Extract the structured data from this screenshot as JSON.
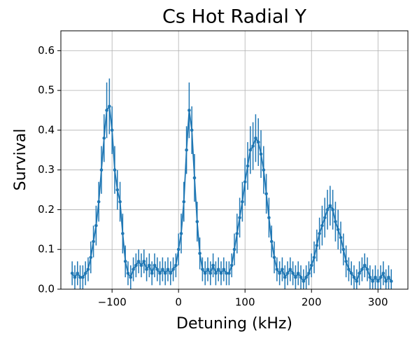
{
  "chart_data": {
    "type": "line",
    "title": "Cs Hot Radial Y",
    "xlabel": "Detuning (kHz)",
    "ylabel": "Survival",
    "x": [
      -160,
      -156,
      -152,
      -148,
      -144,
      -140,
      -136,
      -132,
      -128,
      -124,
      -120,
      -116,
      -112,
      -108,
      -104,
      -100,
      -96,
      -92,
      -88,
      -84,
      -80,
      -76,
      -72,
      -68,
      -64,
      -60,
      -56,
      -52,
      -48,
      -44,
      -40,
      -36,
      -32,
      -28,
      -24,
      -20,
      -16,
      -12,
      -8,
      -4,
      0,
      4,
      8,
      12,
      16,
      20,
      24,
      28,
      32,
      36,
      40,
      44,
      48,
      52,
      56,
      60,
      64,
      68,
      72,
      76,
      80,
      84,
      88,
      92,
      96,
      100,
      104,
      108,
      112,
      116,
      120,
      124,
      128,
      132,
      136,
      140,
      144,
      148,
      152,
      156,
      160,
      164,
      168,
      172,
      176,
      180,
      184,
      188,
      192,
      196,
      200,
      204,
      208,
      212,
      216,
      220,
      224,
      228,
      232,
      236,
      240,
      244,
      248,
      252,
      256,
      260,
      264,
      268,
      272,
      276,
      280,
      284,
      288,
      292,
      296,
      300,
      304,
      308,
      312,
      316,
      320
    ],
    "series": [
      {
        "color": "#1f77b4",
        "values": [
          0.04,
          0.03,
          0.04,
          0.03,
          0.03,
          0.04,
          0.05,
          0.08,
          0.12,
          0.16,
          0.22,
          0.3,
          0.38,
          0.45,
          0.46,
          0.4,
          0.3,
          0.25,
          0.22,
          0.14,
          0.07,
          0.04,
          0.03,
          0.05,
          0.06,
          0.07,
          0.06,
          0.07,
          0.05,
          0.06,
          0.04,
          0.06,
          0.05,
          0.04,
          0.05,
          0.04,
          0.05,
          0.04,
          0.05,
          0.06,
          0.1,
          0.14,
          0.22,
          0.35,
          0.45,
          0.4,
          0.28,
          0.17,
          0.09,
          0.05,
          0.04,
          0.05,
          0.04,
          0.06,
          0.04,
          0.05,
          0.04,
          0.05,
          0.04,
          0.04,
          0.06,
          0.1,
          0.14,
          0.18,
          0.22,
          0.27,
          0.31,
          0.35,
          0.36,
          0.38,
          0.37,
          0.34,
          0.3,
          0.24,
          0.18,
          0.12,
          0.08,
          0.05,
          0.04,
          0.05,
          0.03,
          0.04,
          0.05,
          0.04,
          0.03,
          0.04,
          0.03,
          0.02,
          0.03,
          0.04,
          0.06,
          0.08,
          0.11,
          0.14,
          0.16,
          0.18,
          0.2,
          0.21,
          0.2,
          0.17,
          0.15,
          0.13,
          0.1,
          0.07,
          0.05,
          0.04,
          0.03,
          0.02,
          0.04,
          0.05,
          0.06,
          0.05,
          0.03,
          0.02,
          0.03,
          0.02,
          0.03,
          0.04,
          0.02,
          0.03,
          0.02
        ],
        "errors": [
          0.03,
          0.03,
          0.03,
          0.03,
          0.03,
          0.03,
          0.03,
          0.04,
          0.04,
          0.05,
          0.05,
          0.06,
          0.06,
          0.07,
          0.07,
          0.06,
          0.06,
          0.05,
          0.05,
          0.05,
          0.04,
          0.03,
          0.03,
          0.03,
          0.03,
          0.03,
          0.03,
          0.03,
          0.03,
          0.03,
          0.03,
          0.03,
          0.03,
          0.03,
          0.03,
          0.03,
          0.03,
          0.03,
          0.03,
          0.03,
          0.04,
          0.05,
          0.05,
          0.06,
          0.07,
          0.06,
          0.06,
          0.05,
          0.04,
          0.03,
          0.03,
          0.03,
          0.03,
          0.03,
          0.03,
          0.03,
          0.03,
          0.03,
          0.03,
          0.03,
          0.03,
          0.04,
          0.05,
          0.05,
          0.05,
          0.06,
          0.06,
          0.06,
          0.06,
          0.06,
          0.06,
          0.06,
          0.06,
          0.05,
          0.05,
          0.04,
          0.04,
          0.03,
          0.03,
          0.03,
          0.03,
          0.03,
          0.03,
          0.03,
          0.03,
          0.03,
          0.03,
          0.03,
          0.03,
          0.03,
          0.03,
          0.04,
          0.04,
          0.04,
          0.05,
          0.05,
          0.05,
          0.05,
          0.05,
          0.05,
          0.05,
          0.04,
          0.04,
          0.04,
          0.03,
          0.03,
          0.03,
          0.03,
          0.03,
          0.03,
          0.03,
          0.03,
          0.03,
          0.03,
          0.03,
          0.03,
          0.03,
          0.03,
          0.03,
          0.03,
          0.03
        ]
      }
    ],
    "xlim": [
      -177,
      345
    ],
    "ylim": [
      0,
      0.65
    ],
    "xticks": [
      {
        "value": -100,
        "label": "−100"
      },
      0,
      100,
      200,
      300
    ],
    "yticks": [
      {
        "value": 0,
        "label": "0.0"
      },
      0.1,
      0.2,
      0.3,
      0.4,
      0.5,
      0.6
    ],
    "grid": true
  }
}
